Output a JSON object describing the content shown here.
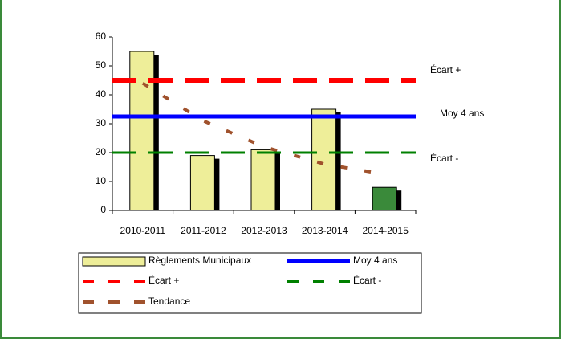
{
  "chart_data": {
    "type": "bar",
    "categories": [
      "2010-2011",
      "2011-2012",
      "2012-2013",
      "2013-2014",
      "2014-2015"
    ],
    "series": [
      {
        "name": "Règlements Municipaux",
        "color": "#eeee99",
        "point_colors": [
          "#eeee99",
          "#eeee99",
          "#eeee99",
          "#eeee99",
          "#3a8a3a"
        ],
        "values": [
          55,
          19,
          21,
          35,
          8
        ]
      },
      {
        "name": "Tendance",
        "type": "line",
        "color": "#a0522d",
        "dashed": true,
        "values": [
          44,
          31,
          22,
          16,
          12.5
        ]
      }
    ],
    "reference_lines": [
      {
        "name": "Moy 4 ans",
        "value": 32.5,
        "color": "#0000ff",
        "dashed": false
      },
      {
        "name": "Écart +",
        "value": 45,
        "color": "#ff0000",
        "dashed": true
      },
      {
        "name": "Écart -",
        "value": 20,
        "color": "#008000",
        "dashed": true
      }
    ],
    "ylim": [
      0,
      60
    ],
    "yticks": [
      0,
      10,
      20,
      30,
      40,
      50,
      60
    ]
  }
}
